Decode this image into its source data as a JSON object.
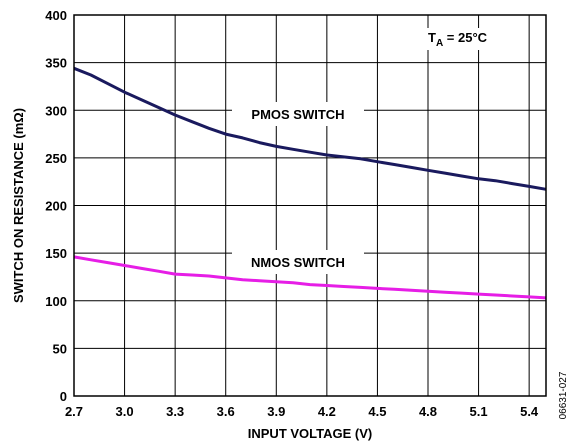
{
  "chart_data": {
    "type": "line",
    "xlabel": "INPUT VOLTAGE (V)",
    "ylabel": "SWITCH ON RESISTANCE (mΩ)",
    "xlim": [
      2.7,
      5.5
    ],
    "ylim": [
      0,
      400
    ],
    "x_ticks": [
      "2.7",
      "3.0",
      "3.3",
      "3.6",
      "3.9",
      "4.2",
      "4.5",
      "4.8",
      "5.1",
      "5.4"
    ],
    "y_ticks": [
      "0",
      "50",
      "100",
      "150",
      "200",
      "250",
      "300",
      "350",
      "400"
    ],
    "grid": true,
    "condition": {
      "prefix": "T",
      "subscript": "A",
      "suffix": " = 25°C"
    },
    "figure_id": "06631-027",
    "series": [
      {
        "name": "PMOS SWITCH",
        "color": "#1a1a5e",
        "x": [
          2.7,
          2.8,
          2.9,
          3.0,
          3.1,
          3.2,
          3.3,
          3.4,
          3.5,
          3.6,
          3.7,
          3.8,
          3.9,
          4.0,
          4.1,
          4.2,
          4.3,
          4.4,
          4.5,
          4.6,
          4.7,
          4.8,
          4.9,
          5.0,
          5.1,
          5.2,
          5.3,
          5.4,
          5.5
        ],
        "y": [
          344,
          337,
          328,
          319,
          311,
          303,
          295,
          288,
          281,
          275,
          271,
          266,
          262,
          259,
          256,
          253,
          251,
          249,
          246,
          243,
          240,
          237,
          234,
          231,
          228,
          226,
          223,
          220,
          217
        ]
      },
      {
        "name": "NMOS SWITCH",
        "color": "#e61ee6",
        "x": [
          2.7,
          2.8,
          2.9,
          3.0,
          3.1,
          3.2,
          3.3,
          3.4,
          3.5,
          3.6,
          3.7,
          3.8,
          3.9,
          4.0,
          4.1,
          4.2,
          4.3,
          4.4,
          4.5,
          4.6,
          4.7,
          4.8,
          4.9,
          5.0,
          5.1,
          5.2,
          5.3,
          5.4,
          5.5
        ],
        "y": [
          146,
          143,
          140,
          137,
          134,
          131,
          128,
          127,
          126,
          124,
          122,
          121,
          120,
          119,
          117,
          116,
          115,
          114,
          113,
          112,
          111,
          110,
          109,
          108,
          107,
          106,
          105,
          104,
          103
        ]
      }
    ]
  }
}
